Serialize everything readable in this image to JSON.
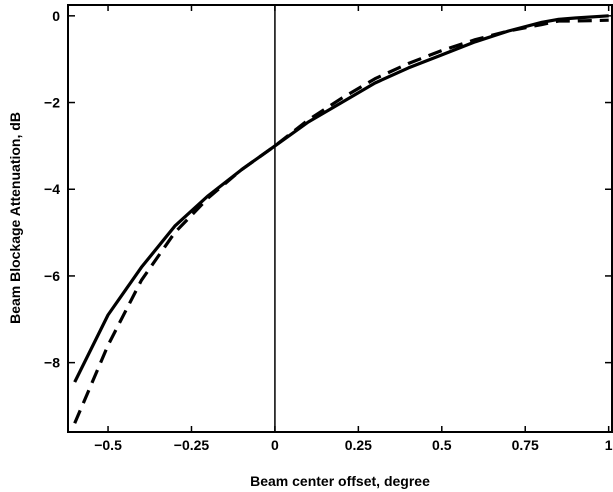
{
  "chart_data": {
    "type": "line",
    "title": "",
    "xlabel": "Beam center offset, degree",
    "ylabel": "Beam Blockage  Attenuation, dB",
    "xlim": [
      -0.62,
      1.01
    ],
    "ylim": [
      -9.6,
      0.25
    ],
    "xticks": [
      -0.5,
      -0.25,
      0,
      0.25,
      0.5,
      0.75,
      1
    ],
    "xtick_labels": [
      "−0.5",
      "−0.25",
      "0",
      "0.25",
      "0.5",
      "0.75",
      "1"
    ],
    "yticks": [
      0,
      -2,
      -4,
      -6,
      -8
    ],
    "ytick_labels": [
      "0",
      "−2",
      "−4",
      "−6",
      "−8"
    ],
    "grid": false,
    "legend": "none",
    "vertical_reference_line_x": 0,
    "series": [
      {
        "style": "solid",
        "color": "#000000",
        "x": [
          -0.6,
          -0.5,
          -0.4,
          -0.3,
          -0.2,
          -0.1,
          0,
          0.1,
          0.2,
          0.3,
          0.4,
          0.5,
          0.6,
          0.7,
          0.8,
          0.85,
          0.9,
          1.0
        ],
        "y": [
          -8.45,
          -6.9,
          -5.8,
          -4.85,
          -4.15,
          -3.55,
          -3.0,
          -2.45,
          -2.0,
          -1.55,
          -1.2,
          -0.9,
          -0.6,
          -0.35,
          -0.15,
          -0.08,
          -0.05,
          0.0
        ]
      },
      {
        "style": "dashed",
        "color": "#000000",
        "x": [
          -0.6,
          -0.5,
          -0.4,
          -0.3,
          -0.2,
          -0.1,
          0,
          0.1,
          0.2,
          0.3,
          0.4,
          0.5,
          0.6,
          0.7,
          0.8,
          0.85,
          0.9,
          1.0
        ],
        "y": [
          -9.4,
          -7.6,
          -6.1,
          -5.0,
          -4.2,
          -3.55,
          -3.0,
          -2.4,
          -1.9,
          -1.45,
          -1.1,
          -0.8,
          -0.55,
          -0.35,
          -0.2,
          -0.12,
          -0.12,
          -0.1
        ]
      }
    ]
  }
}
